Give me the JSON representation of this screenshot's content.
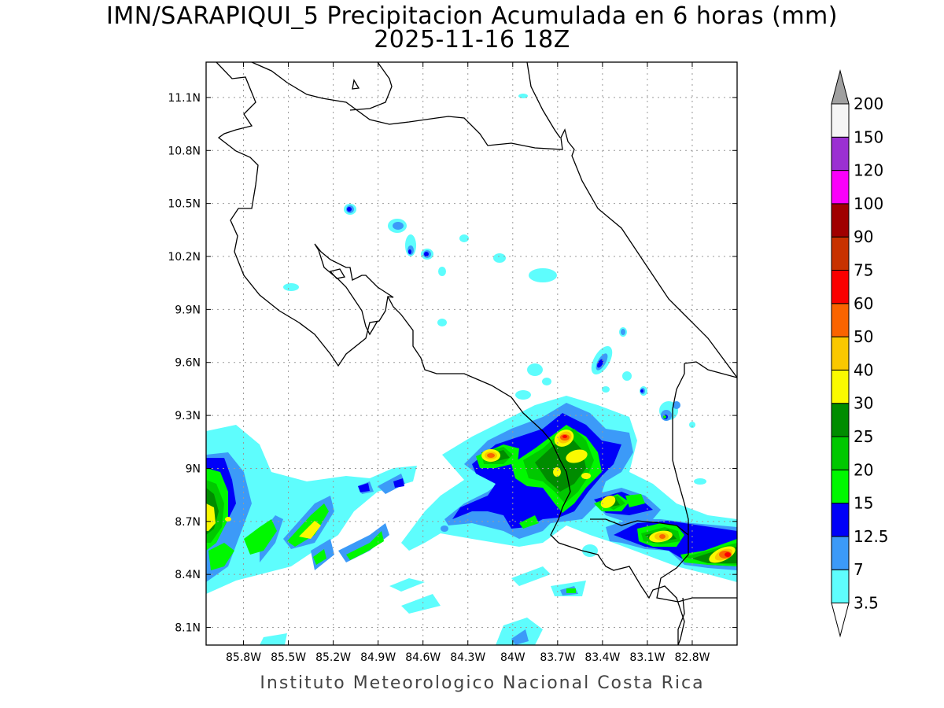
{
  "title": {
    "line1": "IMN/SARAPIQUI_5 Precipitacion Acumulada en 6 horas (mm)",
    "line2": "2025-11-16 18Z"
  },
  "footer": "Instituto Meteorologico Nacional Costa Rica",
  "map": {
    "lon_range": [
      -86.05,
      -82.5
    ],
    "lat_range": [
      8.0,
      11.3
    ],
    "lon_ticks": [
      {
        "value": -85.8,
        "label": "85.8W"
      },
      {
        "value": -85.5,
        "label": "85.5W"
      },
      {
        "value": -85.2,
        "label": "85.2W"
      },
      {
        "value": -84.9,
        "label": "84.9W"
      },
      {
        "value": -84.6,
        "label": "84.6W"
      },
      {
        "value": -84.3,
        "label": "84.3W"
      },
      {
        "value": -84.0,
        "label": "84W"
      },
      {
        "value": -83.7,
        "label": "83.7W"
      },
      {
        "value": -83.4,
        "label": "83.4W"
      },
      {
        "value": -83.1,
        "label": "83.1W"
      },
      {
        "value": -82.8,
        "label": "82.8W"
      }
    ],
    "lat_ticks": [
      {
        "value": 8.1,
        "label": "8.1N"
      },
      {
        "value": 8.4,
        "label": "8.4N"
      },
      {
        "value": 8.7,
        "label": "8.7N"
      },
      {
        "value": 9.0,
        "label": "9N"
      },
      {
        "value": 9.3,
        "label": "9.3N"
      },
      {
        "value": 9.6,
        "label": "9.6N"
      },
      {
        "value": 9.9,
        "label": "9.9N"
      },
      {
        "value": 10.2,
        "label": "10.2N"
      },
      {
        "value": 10.5,
        "label": "10.5N"
      },
      {
        "value": 10.8,
        "label": "10.8N"
      },
      {
        "value": 11.1,
        "label": "11.1N"
      }
    ],
    "grid": true
  },
  "colorbar": {
    "levels": [
      "3.5",
      "7",
      "12.5",
      "15",
      "20",
      "25",
      "30",
      "40",
      "50",
      "60",
      "75",
      "90",
      "100",
      "120",
      "150",
      "200"
    ],
    "colors": [
      "#ffffff",
      "#5efdfd",
      "#3c9af8",
      "#0000f8",
      "#00f800",
      "#00c800",
      "#008c00",
      "#fafa00",
      "#fac800",
      "#fa6400",
      "#fa0000",
      "#c83200",
      "#a00000",
      "#fa00fa",
      "#9b30d2",
      "#f5f5f5",
      "#a0a0a0"
    ]
  },
  "chart_data": {
    "type": "heatmap",
    "title": "IMN/SARAPIQUI_5 Precipitacion Acumulada en 6 horas (mm)",
    "subtitle": "2025-11-16 18Z",
    "units": "mm",
    "xlim": [
      -86.05,
      -82.5
    ],
    "ylim": [
      8.0,
      11.3
    ],
    "fields": [
      {
        "lon": -85.98,
        "lat": 8.75,
        "value": 30
      },
      {
        "lon": -85.3,
        "lat": 8.72,
        "value": 30
      },
      {
        "lon": -84.05,
        "lat": 9.05,
        "value": 50
      },
      {
        "lon": -83.65,
        "lat": 9.17,
        "value": 50
      },
      {
        "lon": -83.57,
        "lat": 9.06,
        "value": 40
      },
      {
        "lon": -83.37,
        "lat": 8.82,
        "value": 40
      },
      {
        "lon": -83.0,
        "lat": 8.62,
        "value": 50
      },
      {
        "lon": -82.6,
        "lat": 8.51,
        "value": 60
      }
    ]
  }
}
